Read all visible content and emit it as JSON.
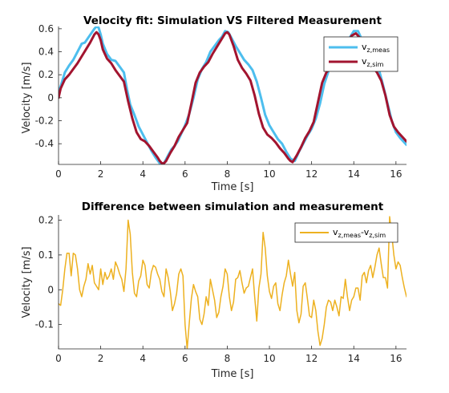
{
  "chart_data": [
    {
      "type": "line",
      "title": "Velocity fit: Simulation VS Filtered Measurement",
      "xlabel": "Time [s]",
      "ylabel": "Velocity [m/s]",
      "xlim": [
        0,
        16.5
      ],
      "ylim": [
        -0.58,
        0.62
      ],
      "xticks": [
        0,
        2,
        4,
        6,
        8,
        10,
        12,
        14,
        16
      ],
      "xtick_labels": [
        "0",
        "2",
        "4",
        "6",
        "8",
        "10",
        "12",
        "14",
        "16"
      ],
      "yticks": [
        -0.4,
        -0.2,
        0,
        0.2,
        0.4,
        0.6
      ],
      "ytick_labels": [
        "-0.4",
        "-0.2",
        "0",
        "0.2",
        "0.4",
        "0.6"
      ],
      "grid": false,
      "legend_position": "top-right",
      "legend": [
        {
          "main": "v",
          "sub": "z,meas"
        },
        {
          "main": "v",
          "sub": "z,sim"
        }
      ],
      "series": [
        {
          "name": "v z,meas",
          "color": "#4DBEEE",
          "x": [
            0,
            0.1,
            0.3,
            0.5,
            0.7,
            0.9,
            1.1,
            1.25,
            1.4,
            1.55,
            1.7,
            1.8,
            1.9,
            2.0,
            2.1,
            2.3,
            2.5,
            2.7,
            2.9,
            3.1,
            3.25,
            3.4,
            3.6,
            3.8,
            4.0,
            4.2,
            4.4,
            4.6,
            4.8,
            5.0,
            5.2,
            5.35,
            5.5,
            5.65,
            5.8,
            6.0,
            6.2,
            6.4,
            6.6,
            6.8,
            7.0,
            7.2,
            7.4,
            7.6,
            7.75,
            7.9,
            8.05,
            8.2,
            8.4,
            8.6,
            8.8,
            9.0,
            9.2,
            9.4,
            9.6,
            9.8,
            10.0,
            10.2,
            10.4,
            10.6,
            10.8,
            11.0,
            11.2,
            11.4,
            11.6,
            11.8,
            12.0,
            12.2,
            12.4,
            12.6,
            12.8,
            13.0,
            13.2,
            13.4,
            13.6,
            13.8,
            14.0,
            14.2,
            14.4,
            14.6,
            14.8,
            15.0,
            15.2,
            15.4,
            15.6,
            15.8,
            16.0,
            16.2,
            16.5
          ],
          "y": [
            0.05,
            0.1,
            0.22,
            0.28,
            0.33,
            0.4,
            0.47,
            0.48,
            0.52,
            0.56,
            0.6,
            0.62,
            0.61,
            0.55,
            0.47,
            0.38,
            0.33,
            0.32,
            0.27,
            0.22,
            0.07,
            -0.06,
            -0.15,
            -0.25,
            -0.32,
            -0.39,
            -0.46,
            -0.52,
            -0.57,
            -0.57,
            -0.5,
            -0.45,
            -0.42,
            -0.38,
            -0.32,
            -0.24,
            -0.14,
            0.0,
            0.16,
            0.25,
            0.31,
            0.4,
            0.45,
            0.5,
            0.53,
            0.58,
            0.57,
            0.52,
            0.45,
            0.39,
            0.33,
            0.29,
            0.24,
            0.14,
            0.0,
            -0.15,
            -0.24,
            -0.3,
            -0.36,
            -0.4,
            -0.47,
            -0.53,
            -0.55,
            -0.47,
            -0.4,
            -0.33,
            -0.27,
            -0.18,
            -0.05,
            0.12,
            0.23,
            0.3,
            0.35,
            0.39,
            0.45,
            0.52,
            0.58,
            0.58,
            0.5,
            0.42,
            0.35,
            0.3,
            0.24,
            0.1,
            -0.05,
            -0.2,
            -0.3,
            -0.35,
            -0.41
          ]
        },
        {
          "name": "v z,sim",
          "color": "#A2142F",
          "x": [
            0,
            0.1,
            0.3,
            0.5,
            0.7,
            0.9,
            1.1,
            1.3,
            1.5,
            1.7,
            1.8,
            1.9,
            2.0,
            2.1,
            2.3,
            2.5,
            2.7,
            2.9,
            3.1,
            3.3,
            3.5,
            3.7,
            3.9,
            4.1,
            4.3,
            4.5,
            4.7,
            4.8,
            4.9,
            5.0,
            5.1,
            5.3,
            5.5,
            5.7,
            5.9,
            6.1,
            6.3,
            6.5,
            6.7,
            6.9,
            7.1,
            7.3,
            7.5,
            7.7,
            7.9,
            8.0,
            8.1,
            8.3,
            8.5,
            8.7,
            8.9,
            9.1,
            9.3,
            9.5,
            9.7,
            9.9,
            10.1,
            10.3,
            10.5,
            10.7,
            10.9,
            11.0,
            11.1,
            11.3,
            11.5,
            11.7,
            11.9,
            12.1,
            12.3,
            12.5,
            12.7,
            12.9,
            13.1,
            13.3,
            13.5,
            13.7,
            13.9,
            14.1,
            14.3,
            14.5,
            14.7,
            14.9,
            15.1,
            15.3,
            15.5,
            15.7,
            15.9,
            16.1,
            16.3,
            16.5
          ],
          "y": [
            0.0,
            0.08,
            0.16,
            0.2,
            0.25,
            0.3,
            0.36,
            0.42,
            0.48,
            0.55,
            0.57,
            0.55,
            0.5,
            0.42,
            0.34,
            0.3,
            0.24,
            0.19,
            0.14,
            -0.03,
            -0.18,
            -0.3,
            -0.36,
            -0.38,
            -0.42,
            -0.47,
            -0.52,
            -0.55,
            -0.57,
            -0.57,
            -0.55,
            -0.48,
            -0.42,
            -0.34,
            -0.28,
            -0.22,
            -0.05,
            0.13,
            0.22,
            0.27,
            0.31,
            0.38,
            0.44,
            0.5,
            0.56,
            0.57,
            0.55,
            0.45,
            0.33,
            0.26,
            0.21,
            0.15,
            0.02,
            -0.14,
            -0.26,
            -0.32,
            -0.35,
            -0.39,
            -0.44,
            -0.48,
            -0.53,
            -0.55,
            -0.56,
            -0.5,
            -0.43,
            -0.35,
            -0.29,
            -0.21,
            -0.04,
            0.13,
            0.22,
            0.26,
            0.3,
            0.36,
            0.43,
            0.48,
            0.54,
            0.56,
            0.52,
            0.45,
            0.36,
            0.27,
            0.22,
            0.15,
            0.02,
            -0.15,
            -0.25,
            -0.3,
            -0.34,
            -0.38
          ]
        }
      ]
    },
    {
      "type": "line",
      "title": "Difference between simulation and measurement",
      "xlabel": "Time [s]",
      "ylabel": "Velocity [m/s]",
      "xlim": [
        0,
        16.5
      ],
      "ylim": [
        -0.17,
        0.215
      ],
      "xticks": [
        0,
        2,
        4,
        6,
        8,
        10,
        12,
        14,
        16
      ],
      "xtick_labels": [
        "0",
        "2",
        "4",
        "6",
        "8",
        "10",
        "12",
        "14",
        "16"
      ],
      "yticks": [
        -0.1,
        0,
        0.1,
        0.2
      ],
      "ytick_labels": [
        "-0.1",
        "0",
        "0.1",
        "0.2"
      ],
      "grid": false,
      "legend_position": "top-right",
      "legend": [
        {
          "main": "v",
          "sub": "z,meas",
          "main2": "-v",
          "sub2": "z,sim"
        }
      ],
      "series": [
        {
          "name": "v z,meas - v z,sim",
          "color": "#EDB120",
          "x": [
            0,
            0.1,
            0.2,
            0.3,
            0.4,
            0.5,
            0.6,
            0.7,
            0.8,
            0.9,
            1.0,
            1.1,
            1.2,
            1.3,
            1.4,
            1.5,
            1.6,
            1.7,
            1.8,
            1.9,
            2.0,
            2.1,
            2.2,
            2.3,
            2.4,
            2.5,
            2.6,
            2.7,
            2.8,
            2.9,
            3.0,
            3.1,
            3.2,
            3.3,
            3.4,
            3.5,
            3.6,
            3.7,
            3.8,
            3.9,
            4.0,
            4.1,
            4.2,
            4.3,
            4.4,
            4.5,
            4.6,
            4.7,
            4.8,
            4.9,
            5.0,
            5.1,
            5.2,
            5.3,
            5.4,
            5.5,
            5.6,
            5.7,
            5.8,
            5.9,
            6.0,
            6.1,
            6.2,
            6.3,
            6.4,
            6.5,
            6.6,
            6.7,
            6.8,
            6.9,
            7.0,
            7.1,
            7.2,
            7.3,
            7.4,
            7.5,
            7.6,
            7.7,
            7.8,
            7.9,
            8.0,
            8.1,
            8.2,
            8.3,
            8.4,
            8.5,
            8.6,
            8.7,
            8.8,
            8.9,
            9.0,
            9.1,
            9.2,
            9.3,
            9.4,
            9.5,
            9.6,
            9.7,
            9.8,
            9.9,
            10.0,
            10.1,
            10.2,
            10.3,
            10.4,
            10.5,
            10.6,
            10.7,
            10.8,
            10.9,
            11.0,
            11.1,
            11.2,
            11.3,
            11.4,
            11.5,
            11.6,
            11.7,
            11.8,
            11.9,
            12.0,
            12.1,
            12.2,
            12.3,
            12.4,
            12.5,
            12.6,
            12.7,
            12.8,
            12.9,
            13.0,
            13.1,
            13.2,
            13.3,
            13.4,
            13.5,
            13.6,
            13.7,
            13.8,
            13.9,
            14.0,
            14.1,
            14.2,
            14.3,
            14.4,
            14.5,
            14.6,
            14.7,
            14.8,
            14.9,
            15.0,
            15.1,
            15.2,
            15.3,
            15.4,
            15.5,
            15.6,
            15.7,
            15.8,
            15.9,
            16.0,
            16.1,
            16.2,
            16.3,
            16.4,
            16.5
          ],
          "y": [
            -0.04,
            -0.045,
            0.0,
            0.06,
            0.105,
            0.105,
            0.04,
            0.105,
            0.1,
            0.06,
            0.0,
            -0.02,
            0.01,
            0.03,
            0.075,
            0.045,
            0.07,
            0.02,
            0.01,
            0.0,
            0.06,
            0.015,
            0.05,
            0.03,
            0.04,
            0.06,
            0.03,
            0.08,
            0.065,
            0.045,
            0.03,
            -0.005,
            0.06,
            0.2,
            0.16,
            0.05,
            -0.01,
            -0.02,
            0.025,
            0.04,
            0.085,
            0.07,
            0.015,
            0.005,
            0.05,
            0.07,
            0.065,
            0.045,
            0.03,
            -0.005,
            -0.02,
            0.06,
            0.035,
            -0.005,
            -0.06,
            -0.04,
            -0.01,
            0.045,
            0.06,
            0.04,
            -0.1,
            -0.17,
            -0.095,
            -0.025,
            0.015,
            -0.005,
            -0.02,
            -0.085,
            -0.1,
            -0.07,
            -0.02,
            -0.045,
            0.03,
            0.0,
            -0.03,
            -0.08,
            -0.065,
            -0.02,
            0.01,
            0.06,
            0.045,
            -0.02,
            -0.06,
            -0.035,
            0.03,
            0.035,
            0.055,
            0.02,
            -0.01,
            0.005,
            0.01,
            0.035,
            0.06,
            -0.02,
            -0.09,
            0.005,
            0.045,
            0.165,
            0.12,
            0.04,
            -0.005,
            -0.025,
            0.01,
            0.02,
            -0.04,
            -0.06,
            -0.015,
            0.02,
            0.04,
            0.085,
            0.045,
            0.01,
            0.05,
            -0.06,
            -0.095,
            -0.07,
            0.01,
            0.02,
            -0.025,
            -0.075,
            -0.08,
            -0.03,
            -0.06,
            -0.12,
            -0.16,
            -0.14,
            -0.1,
            -0.05,
            -0.03,
            -0.035,
            -0.06,
            -0.03,
            -0.05,
            -0.075,
            -0.02,
            -0.025,
            0.03,
            -0.02,
            -0.06,
            -0.03,
            -0.02,
            0.005,
            0.005,
            -0.03,
            0.04,
            0.05,
            0.02,
            0.055,
            0.07,
            0.035,
            0.065,
            0.1,
            0.12,
            0.075,
            0.035,
            0.035,
            0.005,
            0.21,
            0.16,
            0.1,
            0.06,
            0.08,
            0.07,
            0.035,
            0.005,
            -0.02
          ]
        }
      ]
    }
  ]
}
